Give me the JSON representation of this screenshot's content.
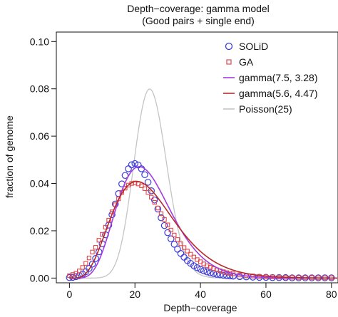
{
  "chart_data": {
    "type": "line",
    "title": "Depth−coverage: gamma model",
    "subtitle": "(Good pairs + single end)",
    "xlabel": "Depth−coverage",
    "ylabel": "fraction of genome",
    "xlim": [
      -4,
      82
    ],
    "ylim": [
      -0.002,
      0.104
    ],
    "x_ticks": [
      "0",
      "20",
      "40",
      "60",
      "80"
    ],
    "y_ticks": [
      "0.00",
      "0.02",
      "0.04",
      "0.06",
      "0.08",
      "0.10"
    ],
    "grid": false,
    "legend_position": "top-right",
    "series": [
      {
        "name": "SOLiD",
        "kind": "points",
        "marker": "circle",
        "color": "#3b3bdc",
        "x": [
          0,
          1,
          2,
          3,
          4,
          5,
          6,
          7,
          8,
          9,
          10,
          11,
          12,
          13,
          14,
          15,
          16,
          17,
          18,
          19,
          20,
          21,
          22,
          23,
          24,
          25,
          26,
          27,
          28,
          29,
          30,
          31,
          32,
          33,
          34,
          35,
          36,
          37,
          38,
          39,
          40,
          41,
          42,
          43,
          44,
          45,
          46,
          47,
          48,
          49,
          50,
          52,
          54,
          56,
          58,
          60,
          62,
          64,
          66,
          68,
          70,
          72,
          74,
          76,
          78,
          80
        ],
        "y": [
          0.0002,
          0.0003,
          0.0006,
          0.001,
          0.0017,
          0.0027,
          0.0041,
          0.0059,
          0.0083,
          0.0111,
          0.0145,
          0.0183,
          0.0224,
          0.0268,
          0.0313,
          0.0357,
          0.0398,
          0.0434,
          0.0462,
          0.0479,
          0.0484,
          0.0478,
          0.0462,
          0.0437,
          0.0405,
          0.0369,
          0.033,
          0.0292,
          0.0255,
          0.0222,
          0.0192,
          0.0166,
          0.0143,
          0.0122,
          0.0104,
          0.0088,
          0.0074,
          0.0062,
          0.0052,
          0.0044,
          0.0037,
          0.0031,
          0.0026,
          0.0022,
          0.0019,
          0.0016,
          0.0014,
          0.0012,
          0.001,
          0.0009,
          0.0008,
          0.0006,
          0.0005,
          0.0004,
          0.0003,
          0.0003,
          0.0002,
          0.0002,
          0.0002,
          0.0001,
          0.0001,
          0.0001,
          0.0001,
          0.0001,
          0.0001,
          0.0001
        ]
      },
      {
        "name": "GA",
        "kind": "points",
        "marker": "square",
        "color": "#e0484c",
        "x": [
          0,
          1,
          2,
          3,
          4,
          5,
          6,
          7,
          8,
          9,
          10,
          11,
          12,
          13,
          14,
          15,
          16,
          17,
          18,
          19,
          20,
          21,
          22,
          23,
          24,
          25,
          26,
          27,
          28,
          29,
          30,
          31,
          32,
          33,
          34,
          35,
          36,
          37,
          38,
          39,
          40,
          41,
          42,
          43,
          44,
          45,
          46,
          47,
          48,
          49,
          50,
          52,
          54,
          56,
          58,
          60,
          62,
          64,
          66,
          68,
          70,
          72,
          74,
          76,
          78,
          80
        ],
        "y": [
          0.001,
          0.0015,
          0.002,
          0.003,
          0.0045,
          0.0062,
          0.0085,
          0.011,
          0.013,
          0.016,
          0.0185,
          0.0215,
          0.0245,
          0.028,
          0.031,
          0.0335,
          0.0362,
          0.038,
          0.0393,
          0.04,
          0.0402,
          0.0398,
          0.039,
          0.0378,
          0.0362,
          0.0342,
          0.032,
          0.0296,
          0.0272,
          0.0248,
          0.0225,
          0.0203,
          0.0182,
          0.0163,
          0.0145,
          0.0129,
          0.0114,
          0.0101,
          0.0089,
          0.0078,
          0.0069,
          0.006,
          0.0052,
          0.0046,
          0.004,
          0.0035,
          0.0031,
          0.0027,
          0.0023,
          0.002,
          0.0018,
          0.0014,
          0.0011,
          0.0009,
          0.0007,
          0.0006,
          0.0005,
          0.0004,
          0.0003,
          0.0003,
          0.0002,
          0.0002,
          0.0002,
          0.0001,
          0.0001,
          0.0001
        ]
      },
      {
        "name": "gamma(7.5, 3.28)",
        "kind": "gamma",
        "shape": 7.5,
        "scale": 3.28,
        "color": "#a23ce0"
      },
      {
        "name": "gamma(5.6, 4.47)",
        "kind": "gamma",
        "shape": 5.6,
        "scale": 4.47,
        "color": "#b82a2a"
      },
      {
        "name": "Poisson(25)",
        "kind": "poisson",
        "lambda": 25,
        "color": "#c4c4c4"
      }
    ]
  }
}
